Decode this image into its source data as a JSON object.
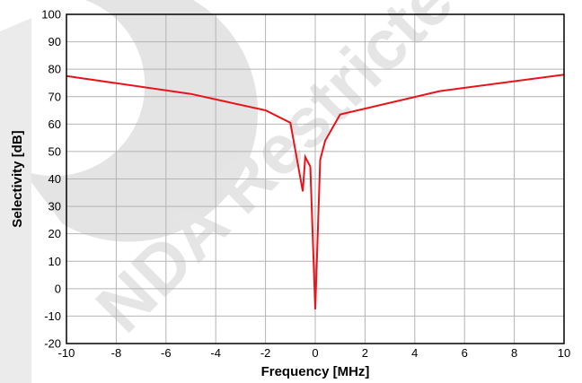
{
  "chart_data": {
    "type": "line",
    "xlabel": "Frequency [MHz]",
    "ylabel": "Selectivity [dB]",
    "xlim": [
      -10,
      10
    ],
    "ylim": [
      -20,
      100
    ],
    "x_ticks": [
      -10,
      -8,
      -6,
      -4,
      -2,
      0,
      2,
      4,
      6,
      8,
      10
    ],
    "y_ticks": [
      -20,
      -10,
      0,
      10,
      20,
      30,
      40,
      50,
      60,
      70,
      80,
      90,
      100
    ],
    "x_tick_labels": [
      "-10",
      "-8",
      "-6",
      "-4",
      "-2",
      "0",
      "2",
      "4",
      "6",
      "8",
      "10"
    ],
    "y_tick_labels": [
      "-20",
      "-10",
      "0",
      "10",
      "20",
      "30",
      "40",
      "50",
      "60",
      "70",
      "80",
      "90",
      "100"
    ],
    "grid": true,
    "series": [
      {
        "color": "#e8141b",
        "points": [
          [
            -10,
            77.5
          ],
          [
            -5,
            71
          ],
          [
            -2,
            65
          ],
          [
            -1,
            60.5
          ],
          [
            -0.5,
            35.5
          ],
          [
            -0.4,
            48
          ],
          [
            -0.2,
            44.5
          ],
          [
            0,
            -7.5
          ],
          [
            0.2,
            47
          ],
          [
            0.4,
            54
          ],
          [
            1,
            63.5
          ],
          [
            5,
            72
          ],
          [
            10,
            78
          ]
        ]
      }
    ]
  },
  "watermark": {
    "text": "NDA Restricted",
    "color": "#cccccc"
  }
}
